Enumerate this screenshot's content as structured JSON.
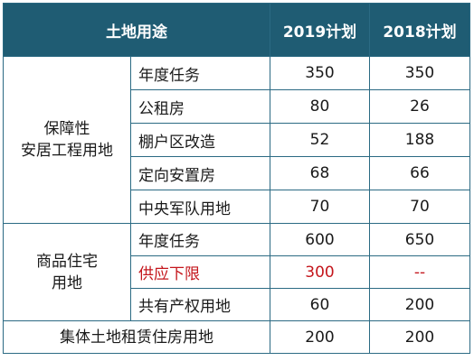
{
  "headers": [
    "土地用途",
    "2019计划",
    "2018计划"
  ],
  "groups": [
    {
      "name_lines": [
        "保障性",
        "安居工程用地"
      ],
      "rows": [
        {
          "item": "年度任务",
          "y2019": "350",
          "y2018": "350"
        },
        {
          "item": "公租房",
          "y2019": "80",
          "y2018": "26"
        },
        {
          "item": "棚户区改造",
          "y2019": "52",
          "y2018": "188"
        },
        {
          "item": "定向安置房",
          "y2019": "68",
          "y2018": "66"
        },
        {
          "item": "中央军队用地",
          "y2019": "70",
          "y2018": "70"
        }
      ]
    },
    {
      "name_lines": [
        "商品住宅",
        "用地"
      ],
      "rows": [
        {
          "item": "年度任务",
          "y2019": "600",
          "y2018": "650"
        },
        {
          "item": "供应下限",
          "y2019": "300",
          "y2018": "--"
        },
        {
          "item": "共有产权用地",
          "y2019": "60",
          "y2018": "200"
        }
      ]
    }
  ],
  "footer": {
    "label": "集体土地租赁住房用地",
    "y2019": "200",
    "y2018": "200"
  },
  "colors": {
    "header_bg": "#1f5c73",
    "border": "#2b6a83",
    "highlight_text": "#c4161c"
  }
}
